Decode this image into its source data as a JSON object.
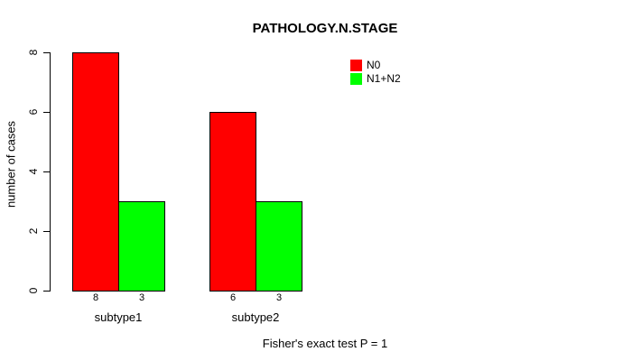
{
  "title": "PATHOLOGY.N.STAGE",
  "footer": "Fisher's exact test P = 1",
  "y_axis": {
    "label": "number of cases",
    "ticks": [
      0,
      2,
      4,
      6,
      8
    ]
  },
  "legend": {
    "items": [
      {
        "label": "N0",
        "color": "#FF0000"
      },
      {
        "label": "N1+N2",
        "color": "#00FF00"
      }
    ]
  },
  "chart_data": {
    "type": "bar",
    "title": "PATHOLOGY.N.STAGE",
    "categories": [
      "subtype1",
      "subtype2"
    ],
    "series": [
      {
        "name": "N0",
        "color": "#FF0000",
        "values": [
          8,
          6
        ]
      },
      {
        "name": "N1+N2",
        "color": "#00FF00",
        "values": [
          3,
          3
        ]
      }
    ],
    "bar_value_labels": [
      [
        "8",
        "3"
      ],
      [
        "6",
        "3"
      ]
    ],
    "xlabel": "",
    "ylabel": "number of cases",
    "ylim": [
      0,
      8
    ],
    "yticks": [
      0,
      2,
      4,
      6,
      8
    ],
    "grid": false,
    "legend_position": "upper-right",
    "annotation": "Fisher's exact test P = 1"
  }
}
